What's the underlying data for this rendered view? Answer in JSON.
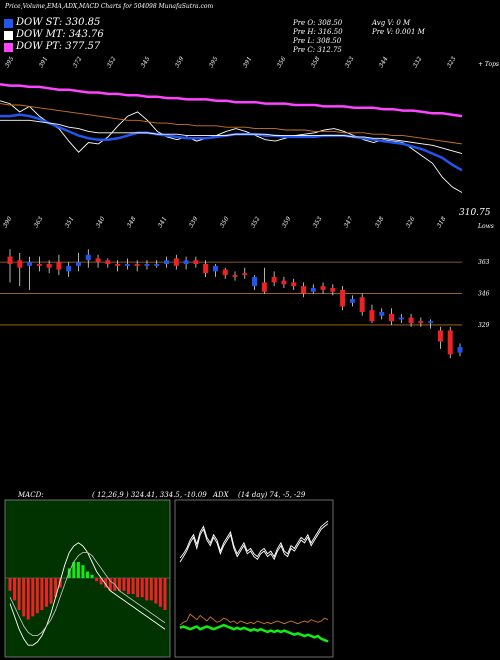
{
  "header": {
    "title": "Price,Volume,EMA,ADX,MACD Charts for 504098 MunafaSutra.com",
    "legend": [
      {
        "label": "DOW ST: 330.85",
        "color": "#2255ee"
      },
      {
        "label": "DOW MT: 343.76",
        "color": "#ffffff"
      },
      {
        "label": "DOW PT: 377.57",
        "color": "#ff44ff"
      }
    ],
    "stats": [
      {
        "text": "Pre   O: 308.50"
      },
      {
        "text": "Pre   H: 316.50"
      },
      {
        "text": "Pre   L: 308.50"
      },
      {
        "text": "Pre   C: 312.75"
      },
      {
        "text": "Avg V: 0   M"
      },
      {
        "text": "Pre   V: 0.001 M"
      }
    ]
  },
  "chart_data": [
    {
      "type": "line",
      "name": "price-ema-panel",
      "top_labels": [
        "395",
        "391",
        "372",
        "352",
        "345",
        "359",
        "395",
        "391",
        "356",
        "358",
        "353",
        "344",
        "332",
        "323"
      ],
      "bottom_labels": [
        "390",
        "363",
        "351",
        "340",
        "348",
        "341",
        "339",
        "350",
        "352",
        "359",
        "353",
        "347",
        "338",
        "326",
        "318"
      ],
      "right_top_label": "+ Tops",
      "right_bottom_label": "Lows",
      "last_price_label": "310.75",
      "bottom_right_value": "318",
      "series": [
        {
          "color": "#ffffff",
          "values": [
            380,
            378,
            372,
            376,
            369,
            364,
            360,
            351,
            343,
            350,
            349,
            354,
            362,
            369,
            372,
            366,
            358,
            354,
            352,
            354,
            351,
            353,
            355,
            358,
            360,
            358,
            355,
            352,
            351,
            353,
            355,
            356,
            357,
            359,
            360,
            358,
            355,
            352,
            350,
            352,
            351,
            350,
            345,
            340,
            335,
            325,
            318,
            314
          ]
        },
        {
          "color": "#2255ee",
          "values": [
            369,
            369,
            370,
            369,
            367,
            364,
            361,
            358,
            355,
            353,
            352,
            352,
            353,
            355,
            357,
            357,
            356,
            355,
            354,
            353,
            353,
            353,
            354,
            355,
            356,
            356,
            356,
            355,
            355,
            354,
            354,
            354,
            354,
            355,
            355,
            355,
            354,
            353,
            352,
            351,
            350,
            349,
            347,
            345,
            342,
            339,
            334,
            330
          ]
        },
        {
          "color": "#ffffff",
          "values": [
            366,
            366,
            366,
            366,
            365,
            364,
            363,
            361,
            360,
            358,
            357,
            357,
            357,
            357,
            357,
            357,
            356,
            356,
            356,
            355,
            355,
            355,
            355,
            355,
            356,
            356,
            356,
            356,
            355,
            355,
            355,
            355,
            355,
            355,
            355,
            355,
            354,
            354,
            353,
            353,
            352,
            351,
            350,
            349,
            348,
            346,
            344,
            342
          ]
        },
        {
          "color": "#cc7722",
          "values": [
            378,
            377,
            377,
            376,
            375,
            374,
            373,
            372,
            371,
            370,
            369,
            368,
            367,
            366,
            366,
            365,
            364,
            364,
            363,
            363,
            362,
            362,
            362,
            361,
            361,
            361,
            360,
            360,
            360,
            359,
            359,
            359,
            358,
            358,
            358,
            357,
            357,
            357,
            356,
            356,
            355,
            355,
            354,
            353,
            352,
            351,
            350,
            349
          ]
        },
        {
          "color": "#ff44ff",
          "values": [
            392,
            391,
            391,
            390,
            390,
            389,
            388,
            388,
            387,
            386,
            386,
            385,
            385,
            384,
            384,
            383,
            383,
            382,
            382,
            381,
            381,
            381,
            380,
            380,
            379,
            379,
            379,
            378,
            378,
            378,
            377,
            377,
            377,
            376,
            376,
            376,
            375,
            375,
            375,
            374,
            374,
            373,
            373,
            372,
            371,
            371,
            370,
            369
          ]
        }
      ]
    },
    {
      "type": "candlestick",
      "name": "candle-panel",
      "level_labels": [
        "363",
        "346",
        "329"
      ],
      "candles": [
        {
          "o": 366,
          "c": 362,
          "h": 370,
          "l": 352
        },
        {
          "o": 364,
          "c": 360,
          "h": 368,
          "l": 350
        },
        {
          "o": 361,
          "c": 363,
          "h": 366,
          "l": 348
        },
        {
          "o": 362,
          "c": 361,
          "h": 366,
          "l": 358
        },
        {
          "o": 362,
          "c": 360,
          "h": 364,
          "l": 357
        },
        {
          "o": 363,
          "c": 359,
          "h": 367,
          "l": 356
        },
        {
          "o": 358,
          "c": 361,
          "h": 363,
          "l": 355
        },
        {
          "o": 361,
          "c": 363,
          "h": 368,
          "l": 358
        },
        {
          "o": 364,
          "c": 367,
          "h": 370,
          "l": 360
        },
        {
          "o": 365,
          "c": 363,
          "h": 367,
          "l": 360
        },
        {
          "o": 364,
          "c": 362,
          "h": 365,
          "l": 360
        },
        {
          "o": 362,
          "c": 361,
          "h": 364,
          "l": 358
        },
        {
          "o": 361,
          "c": 362,
          "h": 365,
          "l": 359
        },
        {
          "o": 362,
          "c": 361,
          "h": 364,
          "l": 358
        },
        {
          "o": 361,
          "c": 362,
          "h": 364,
          "l": 359
        },
        {
          "o": 361,
          "c": 362,
          "h": 364,
          "l": 360
        },
        {
          "o": 362,
          "c": 364,
          "h": 366,
          "l": 360
        },
        {
          "o": 365,
          "c": 361,
          "h": 367,
          "l": 359
        },
        {
          "o": 362,
          "c": 364,
          "h": 366,
          "l": 359
        },
        {
          "o": 364,
          "c": 362,
          "h": 366,
          "l": 360
        },
        {
          "o": 362,
          "c": 357,
          "h": 364,
          "l": 355
        },
        {
          "o": 358,
          "c": 361,
          "h": 362,
          "l": 355
        },
        {
          "o": 359,
          "c": 356,
          "h": 360,
          "l": 354
        },
        {
          "o": 356,
          "c": 355,
          "h": 358,
          "l": 353
        },
        {
          "o": 357,
          "c": 356,
          "h": 360,
          "l": 354
        },
        {
          "o": 350,
          "c": 355,
          "h": 356,
          "l": 348
        },
        {
          "o": 352,
          "c": 347,
          "h": 360,
          "l": 346
        },
        {
          "o": 355,
          "c": 352,
          "h": 358,
          "l": 350
        },
        {
          "o": 353,
          "c": 351,
          "h": 355,
          "l": 349
        },
        {
          "o": 352,
          "c": 350,
          "h": 354,
          "l": 348
        },
        {
          "o": 350,
          "c": 346,
          "h": 352,
          "l": 344
        },
        {
          "o": 347,
          "c": 349,
          "h": 351,
          "l": 346
        },
        {
          "o": 350,
          "c": 348,
          "h": 352,
          "l": 346
        },
        {
          "o": 349,
          "c": 347,
          "h": 351,
          "l": 345
        },
        {
          "o": 348,
          "c": 339,
          "h": 350,
          "l": 337
        },
        {
          "o": 341,
          "c": 343,
          "h": 345,
          "l": 339
        },
        {
          "o": 344,
          "c": 336,
          "h": 346,
          "l": 334
        },
        {
          "o": 337,
          "c": 331,
          "h": 340,
          "l": 330
        },
        {
          "o": 334,
          "c": 336,
          "h": 338,
          "l": 332
        },
        {
          "o": 335,
          "c": 331,
          "h": 338,
          "l": 329
        },
        {
          "o": 332,
          "c": 333,
          "h": 335,
          "l": 330
        },
        {
          "o": 333,
          "c": 330,
          "h": 335,
          "l": 328
        },
        {
          "o": 331,
          "c": 330,
          "h": 333,
          "l": 328
        },
        {
          "o": 330,
          "c": 331,
          "h": 332,
          "l": 327
        },
        {
          "o": 326,
          "c": 320,
          "h": 328,
          "l": 316
        },
        {
          "o": 326,
          "c": 313,
          "h": 328,
          "l": 311
        },
        {
          "o": 314,
          "c": 317,
          "h": 319,
          "l": 312
        }
      ]
    },
    {
      "type": "bar",
      "name": "macd-panel",
      "title": "MACD:",
      "params": "( 12,26,9 ) 324.41,  334.5,  -10.09",
      "histogram": [
        -4,
        -7,
        -10,
        -12,
        -13,
        -12,
        -11,
        -10,
        -9,
        -8,
        -6,
        -3,
        0,
        3,
        5,
        5,
        4,
        2,
        1,
        -1,
        -2,
        -3,
        -4,
        -4,
        -4,
        -4,
        -5,
        -5,
        -6,
        -6,
        -7,
        -7,
        -8,
        -9,
        -10
      ],
      "macd": [
        -8,
        -12,
        -16,
        -19,
        -21,
        -21,
        -20,
        -18,
        -15,
        -11,
        -6,
        -1,
        4,
        8,
        10,
        11,
        10,
        8,
        5,
        2,
        0,
        -2,
        -4,
        -5,
        -6,
        -7,
        -8,
        -9,
        -10,
        -11,
        -12,
        -13,
        -14,
        -15,
        -16
      ],
      "signal": [
        -6,
        -9,
        -12,
        -15,
        -17,
        -18,
        -18,
        -17,
        -15,
        -13,
        -10,
        -6,
        -2,
        2,
        5,
        7,
        8,
        8,
        7,
        5,
        3,
        1,
        -1,
        -2,
        -4,
        -5,
        -6,
        -7,
        -8,
        -9,
        -10,
        -11,
        -12,
        -13,
        -14
      ]
    },
    {
      "type": "line",
      "name": "adx-panel",
      "title": "ADX",
      "params": "(14  day) 74,  -5,  -29",
      "series": [
        {
          "color": "#ffffff",
          "values": [
            55,
            58,
            62,
            68,
            72,
            65,
            74,
            78,
            70,
            66,
            72,
            68,
            60,
            66,
            70,
            74,
            64,
            58,
            62,
            66,
            60,
            62,
            58,
            56,
            60,
            62,
            58,
            60,
            56,
            62,
            66,
            60,
            58,
            64,
            62,
            66,
            70,
            68,
            72,
            66,
            70,
            74,
            78,
            80,
            82
          ]
        },
        {
          "color": "#ffffff",
          "values": [
            52,
            56,
            60,
            66,
            70,
            62,
            72,
            76,
            68,
            64,
            70,
            66,
            58,
            64,
            68,
            72,
            62,
            56,
            60,
            64,
            58,
            60,
            56,
            54,
            58,
            60,
            56,
            58,
            54,
            60,
            64,
            58,
            56,
            62,
            60,
            64,
            68,
            66,
            70,
            64,
            68,
            72,
            76,
            78,
            80
          ]
        },
        {
          "color": "#cc7722",
          "values": [
            6,
            8,
            9,
            14,
            12,
            10,
            13,
            11,
            9,
            12,
            10,
            8,
            9,
            11,
            10,
            8,
            9,
            7,
            9,
            8,
            7,
            8,
            7,
            9,
            8,
            7,
            8,
            7,
            8,
            9,
            8,
            7,
            8,
            9,
            8,
            7,
            8,
            9,
            8,
            10,
            9,
            8,
            9,
            11,
            10
          ]
        },
        {
          "color": "#11ee11",
          "values": [
            4,
            5,
            4,
            3,
            4,
            5,
            3,
            4,
            5,
            4,
            3,
            4,
            5,
            6,
            5,
            4,
            3,
            4,
            3,
            4,
            3,
            2,
            3,
            2,
            3,
            2,
            1,
            2,
            1,
            2,
            1,
            2,
            1,
            0,
            -1,
            0,
            -1,
            -2,
            -1,
            -2,
            -3,
            -2,
            -4,
            -5,
            -6
          ]
        }
      ]
    }
  ]
}
